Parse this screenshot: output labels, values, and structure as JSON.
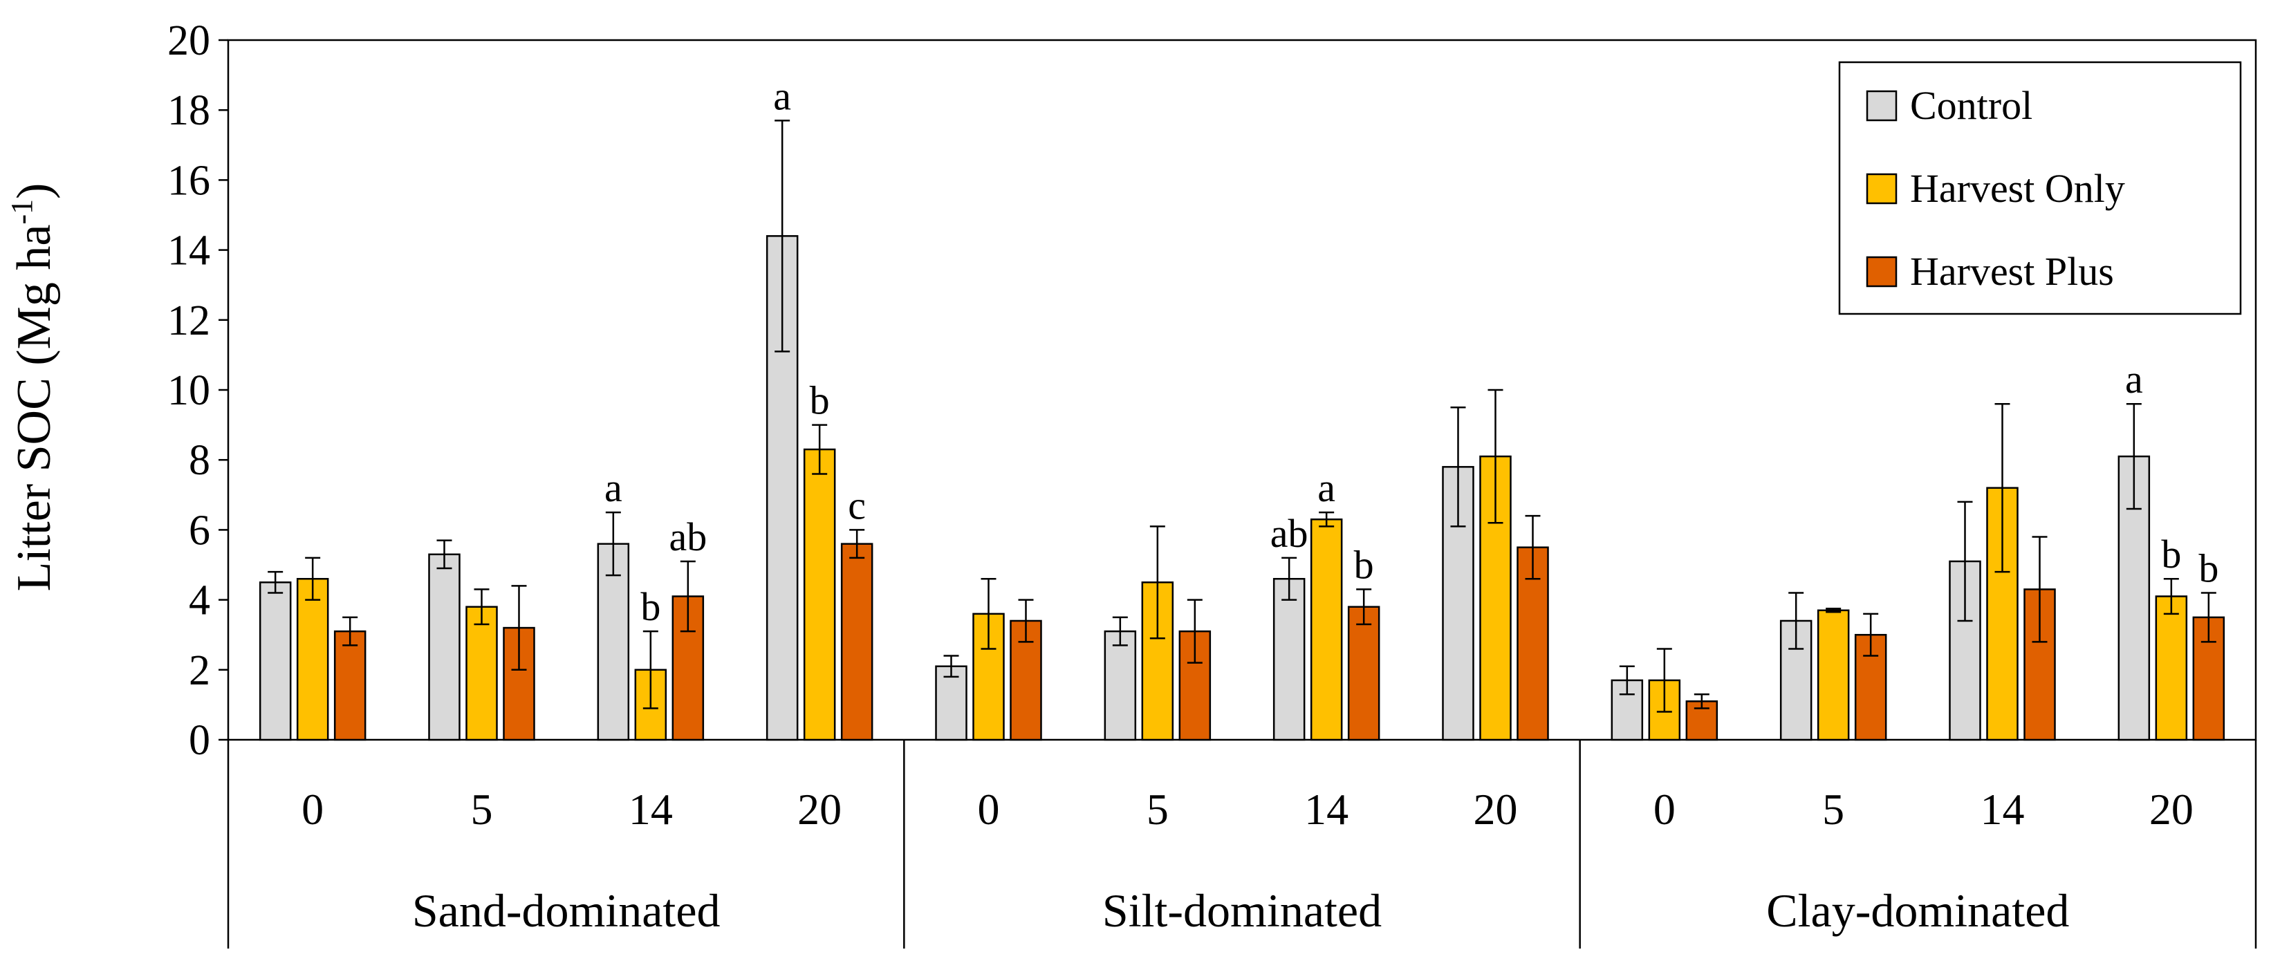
{
  "chart_data": {
    "type": "bar",
    "title": "",
    "xlabel": "",
    "ylabel": "Litter SOC (Mg ha",
    "ylabel_superscript": "-1",
    "ylabel_suffix": ")",
    "ylim": [
      0,
      20
    ],
    "yticks": [
      "0",
      "2",
      "4",
      "6",
      "8",
      "10",
      "12",
      "14",
      "16",
      "18",
      "20"
    ],
    "grid": false,
    "legend_position": "top-right",
    "groups": [
      {
        "name": "Sand-dominated",
        "categories": [
          "0",
          "5",
          "14",
          "20"
        ]
      },
      {
        "name": "Silt-dominated",
        "categories": [
          "0",
          "5",
          "14",
          "20"
        ]
      },
      {
        "name": "Clay-dominated",
        "categories": [
          "0",
          "5",
          "14",
          "20"
        ]
      }
    ],
    "series": [
      {
        "name": "Control",
        "color": "#d9d9d9",
        "values": [
          4.5,
          5.3,
          5.6,
          14.4,
          2.1,
          3.1,
          4.6,
          7.8,
          1.7,
          3.4,
          5.1,
          8.1
        ],
        "errors": [
          0.3,
          0.4,
          0.9,
          3.3,
          0.3,
          0.4,
          0.6,
          1.7,
          0.4,
          0.8,
          1.7,
          1.5
        ],
        "labels": [
          "",
          "",
          "a",
          "a",
          "",
          "",
          "ab",
          "",
          "",
          "",
          "",
          "a"
        ]
      },
      {
        "name": "Harvest Only",
        "color": "#ffc000",
        "values": [
          4.6,
          3.8,
          2.0,
          8.3,
          3.6,
          4.5,
          6.3,
          8.1,
          1.7,
          3.7,
          7.2,
          4.1
        ],
        "errors": [
          0.6,
          0.5,
          1.1,
          0.7,
          1.0,
          1.6,
          0.2,
          1.9,
          0.9,
          0.05,
          2.4,
          0.5
        ],
        "labels": [
          "",
          "",
          "b",
          "b",
          "",
          "",
          "a",
          "",
          "",
          "",
          "",
          "b"
        ]
      },
      {
        "name": "Harvest Plus",
        "color": "#e06000",
        "values": [
          3.1,
          3.2,
          4.1,
          5.6,
          3.4,
          3.1,
          3.8,
          5.5,
          1.1,
          3.0,
          4.3,
          3.5
        ],
        "errors": [
          0.4,
          1.2,
          1.0,
          0.4,
          0.6,
          0.9,
          0.5,
          0.9,
          0.2,
          0.6,
          1.5,
          0.7
        ],
        "labels": [
          "",
          "",
          "ab",
          "c",
          "",
          "",
          "b",
          "",
          "",
          "",
          "",
          "b"
        ]
      }
    ]
  }
}
